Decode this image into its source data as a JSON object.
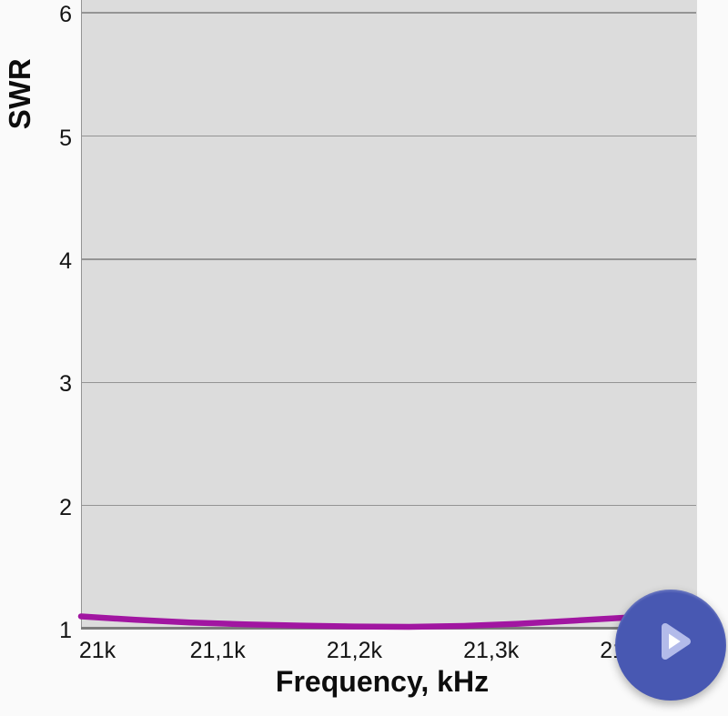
{
  "chart_data": {
    "type": "line",
    "title": "",
    "xlabel": "Frequency, kHz",
    "ylabel": "SWR",
    "xlim": [
      21000,
      21450
    ],
    "ylim": [
      1,
      6.105
    ],
    "grid": true,
    "legend": "none",
    "x_ticks": [
      {
        "value": 21000,
        "label": "21k"
      },
      {
        "value": 21100,
        "label": "21,1k"
      },
      {
        "value": 21200,
        "label": "21,2k"
      },
      {
        "value": 21300,
        "label": "21,3k"
      },
      {
        "value": 21400,
        "label": "21,4k"
      }
    ],
    "y_ticks": [
      {
        "value": 1,
        "label": "1"
      },
      {
        "value": 2,
        "label": "2"
      },
      {
        "value": 3,
        "label": "3"
      },
      {
        "value": 4,
        "label": "4"
      },
      {
        "value": 5,
        "label": "5"
      },
      {
        "value": 6,
        "label": "6"
      }
    ],
    "series": [
      {
        "name": "SWR",
        "color": "#a116a1",
        "x": [
          21000,
          21040,
          21080,
          21120,
          21160,
          21200,
          21240,
          21280,
          21320,
          21360,
          21400,
          21450
        ],
        "values": [
          1.1,
          1.072,
          1.05,
          1.035,
          1.025,
          1.018,
          1.015,
          1.022,
          1.04,
          1.065,
          1.09,
          1.12
        ]
      }
    ]
  },
  "fab": {
    "icon": "play-icon",
    "action": "start-scan"
  },
  "colors": {
    "background": "#fafafa",
    "plot_bg": "#dcdcdc",
    "grid": "#949494",
    "axis": "#7c7c7c",
    "text": "#111111",
    "line": "#a116a1",
    "fab": "#4858b2",
    "fab_icon_fill": "#ffffff",
    "fab_icon_stroke": "#b3bbea"
  }
}
